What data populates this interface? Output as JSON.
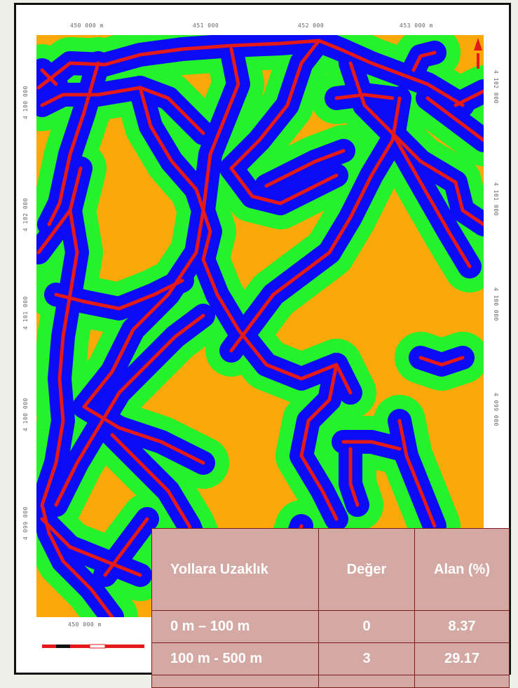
{
  "map": {
    "colors": {
      "far_zone": "#fba80b",
      "mid_zone": "#24f22a",
      "near_zone": "#0b0bf5",
      "road": "#e41919",
      "border": "#111111",
      "table_bg": "#d4a9a3",
      "table_border": "#7a1b1b"
    },
    "north_arrow_icon": "north-arrow-icon",
    "coord_labels": {
      "top": [
        "450 000 m",
        "451 000",
        "452 000",
        "453 000 m"
      ],
      "bottom": [
        "450 000 m"
      ],
      "left": [
        "4 100 000",
        "4 102 000",
        "4 101 000",
        "4 100 000",
        "4 099 000"
      ],
      "right": [
        "4 102 000",
        "4 101 000",
        "4 100 000",
        "4 099 000"
      ]
    }
  },
  "legend_table": {
    "headers": [
      "Yollara Uzaklık",
      "Değer",
      "Alan (%)"
    ],
    "rows": [
      {
        "range": "0 m – 100 m",
        "value": "0",
        "area": "8.37"
      },
      {
        "range": "100 m - 500 m",
        "value": "3",
        "area": "29.17"
      },
      {
        "range": "",
        "value": "",
        "area": ""
      }
    ]
  }
}
